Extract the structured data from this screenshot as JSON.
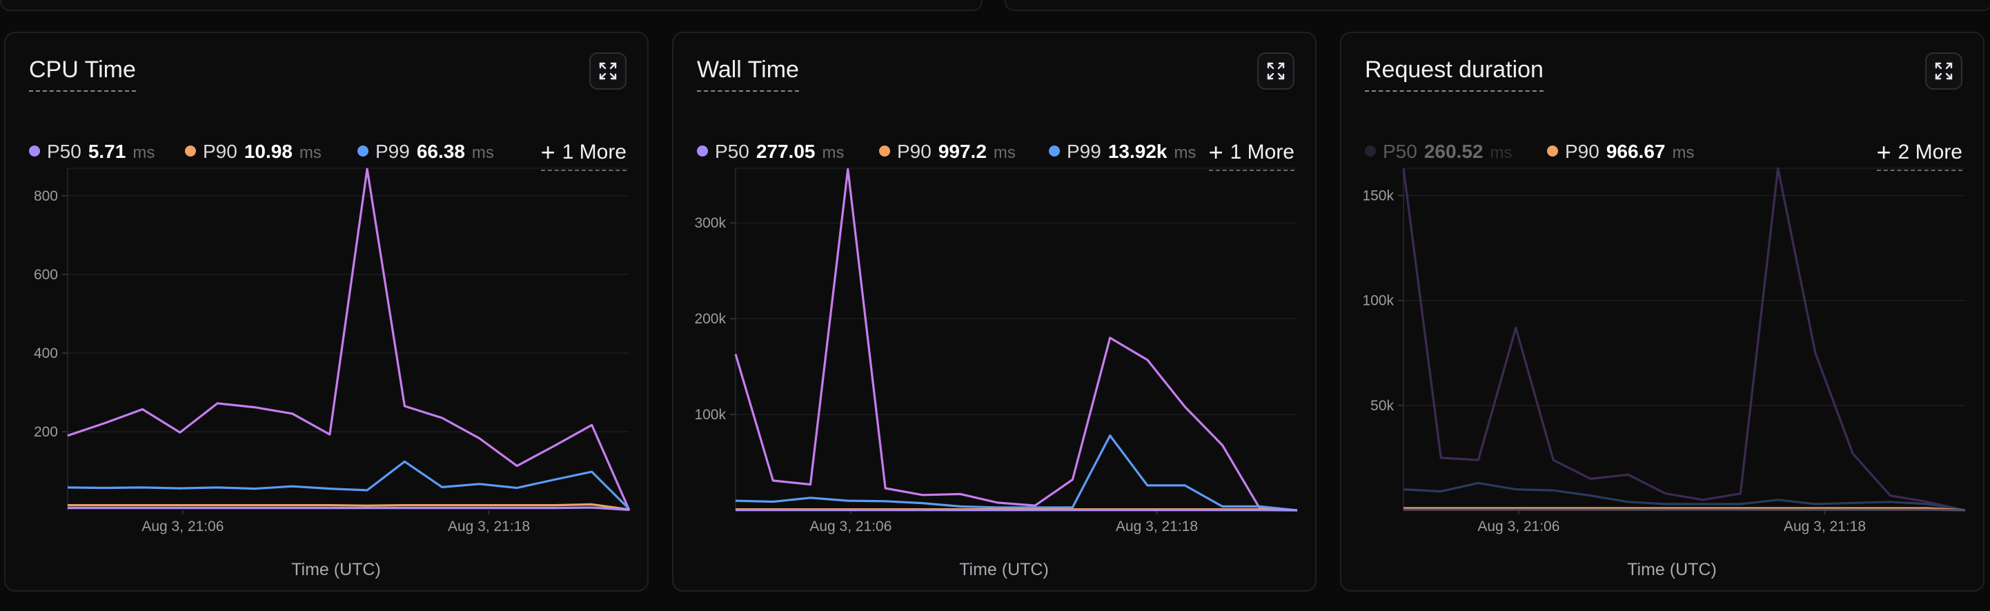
{
  "panels": [
    {
      "title": "CPU Time",
      "legend": [
        {
          "label": "P50",
          "value": "5.71",
          "unit": "ms",
          "color": "#a78bfa",
          "dim": false
        },
        {
          "label": "P90",
          "value": "10.98",
          "unit": "ms",
          "color": "#f4a261",
          "dim": false
        },
        {
          "label": "P99",
          "value": "66.38",
          "unit": "ms",
          "color": "#5b9cf6",
          "dim": false
        }
      ],
      "more_label": "1 More",
      "xlabel": "Time (UTC)",
      "chart_data": {
        "type": "line",
        "xlabel": "Time (UTC)",
        "x_ticks": [
          "Aug 3, 21:06",
          "Aug 3, 21:18"
        ],
        "y_ticks": [
          200,
          400,
          600,
          800
        ],
        "y_tick_labels": [
          "200",
          "400",
          "600",
          "800"
        ],
        "ylim": [
          0,
          870
        ],
        "grid": true,
        "series": [
          {
            "color": "#c77dee",
            "values": [
              190,
              222,
              257,
              198,
              272,
              262,
              246,
              193,
              868,
              265,
              235,
              183,
              113,
              164,
              217,
              0
            ]
          },
          {
            "color": "#5b9cf6",
            "values": [
              58,
              57,
              58,
              56,
              58,
              55,
              61,
              55,
              51,
              124,
              59,
              67,
              57,
              78,
              98,
              3
            ]
          },
          {
            "color": "#f4a261",
            "values": [
              13,
              13,
              13,
              13,
              13,
              13,
              13,
              13,
              12,
              13,
              13,
              13,
              13,
              13,
              15,
              2
            ]
          },
          {
            "color": "#a78bfa",
            "values": [
              6,
              6,
              6,
              6,
              6,
              6,
              6,
              6,
              6,
              6,
              6,
              6,
              6,
              6,
              7,
              1
            ]
          }
        ]
      }
    },
    {
      "title": "Wall Time",
      "legend": [
        {
          "label": "P50",
          "value": "277.05",
          "unit": "ms",
          "color": "#a78bfa",
          "dim": false
        },
        {
          "label": "P90",
          "value": "997.2",
          "unit": "ms",
          "color": "#f4a261",
          "dim": false
        },
        {
          "label": "P99",
          "value": "13.92k",
          "unit": "ms",
          "color": "#5b9cf6",
          "dim": false
        }
      ],
      "more_label": "1 More",
      "xlabel": "Time (UTC)",
      "chart_data": {
        "type": "line",
        "xlabel": "Time (UTC)",
        "x_ticks": [
          "Aug 3, 21:06",
          "Aug 3, 21:18"
        ],
        "y_ticks": [
          100000,
          200000,
          300000
        ],
        "y_tick_labels": [
          "100k",
          "200k",
          "300k"
        ],
        "ylim": [
          0,
          357000
        ],
        "grid": true,
        "series": [
          {
            "color": "#c77dee",
            "values": [
              163000,
              31000,
              27000,
              356000,
              23000,
              16000,
              17000,
              8000,
              5000,
              32000,
              180000,
              157000,
              108000,
              68000,
              2000,
              0
            ]
          },
          {
            "color": "#5b9cf6",
            "values": [
              10000,
              9000,
              13000,
              10000,
              9500,
              7500,
              4000,
              3000,
              3000,
              3000,
              78000,
              26000,
              26000,
              4000,
              4000,
              0
            ]
          },
          {
            "color": "#f4a261",
            "values": [
              1000,
              1000,
              1000,
              1000,
              1000,
              1000,
              1000,
              1000,
              1000,
              1000,
              1000,
              1000,
              1000,
              1000,
              1000,
              0
            ]
          },
          {
            "color": "#a78bfa",
            "values": [
              300,
              300,
              300,
              300,
              300,
              300,
              300,
              300,
              300,
              300,
              300,
              300,
              300,
              300,
              300,
              0
            ]
          }
        ]
      }
    },
    {
      "title": "Request duration",
      "legend": [
        {
          "label": "P50",
          "value": "260.52",
          "unit": "ms",
          "color": "#4b4a62",
          "dim": true
        },
        {
          "label": "P90",
          "value": "966.67",
          "unit": "ms",
          "color": "#f4a261",
          "dim": false
        }
      ],
      "more_label": "2 More",
      "xlabel": "Time (UTC)",
      "chart_data": {
        "type": "line",
        "xlabel": "Time (UTC)",
        "x_ticks": [
          "Aug 3, 21:06",
          "Aug 3, 21:18"
        ],
        "y_ticks": [
          50000,
          100000,
          150000
        ],
        "y_tick_labels": [
          "50k",
          "100k",
          "150k"
        ],
        "ylim": [
          0,
          163000
        ],
        "grid": true,
        "series": [
          {
            "color": "#3d2a52",
            "values": [
              163000,
              25000,
              24000,
              87000,
              24000,
              15000,
              17000,
              8000,
              5000,
              8000,
              163000,
              75000,
              27000,
              7000,
              4000,
              0
            ]
          },
          {
            "color": "#2a3b5c",
            "values": [
              10000,
              9000,
              13000,
              10000,
              9500,
              7000,
              4000,
              3000,
              3000,
              3000,
              5000,
              3000,
              3500,
              4000,
              3000,
              0
            ]
          },
          {
            "color": "#f4a261",
            "values": [
              1000,
              1000,
              1000,
              1000,
              1000,
              1000,
              1000,
              1000,
              1000,
              1000,
              1000,
              1000,
              1000,
              1000,
              1000,
              0
            ]
          },
          {
            "color": "#4b4a62",
            "values": [
              300,
              300,
              300,
              300,
              300,
              300,
              300,
              300,
              300,
              300,
              300,
              300,
              300,
              300,
              300,
              0
            ]
          }
        ]
      }
    }
  ]
}
